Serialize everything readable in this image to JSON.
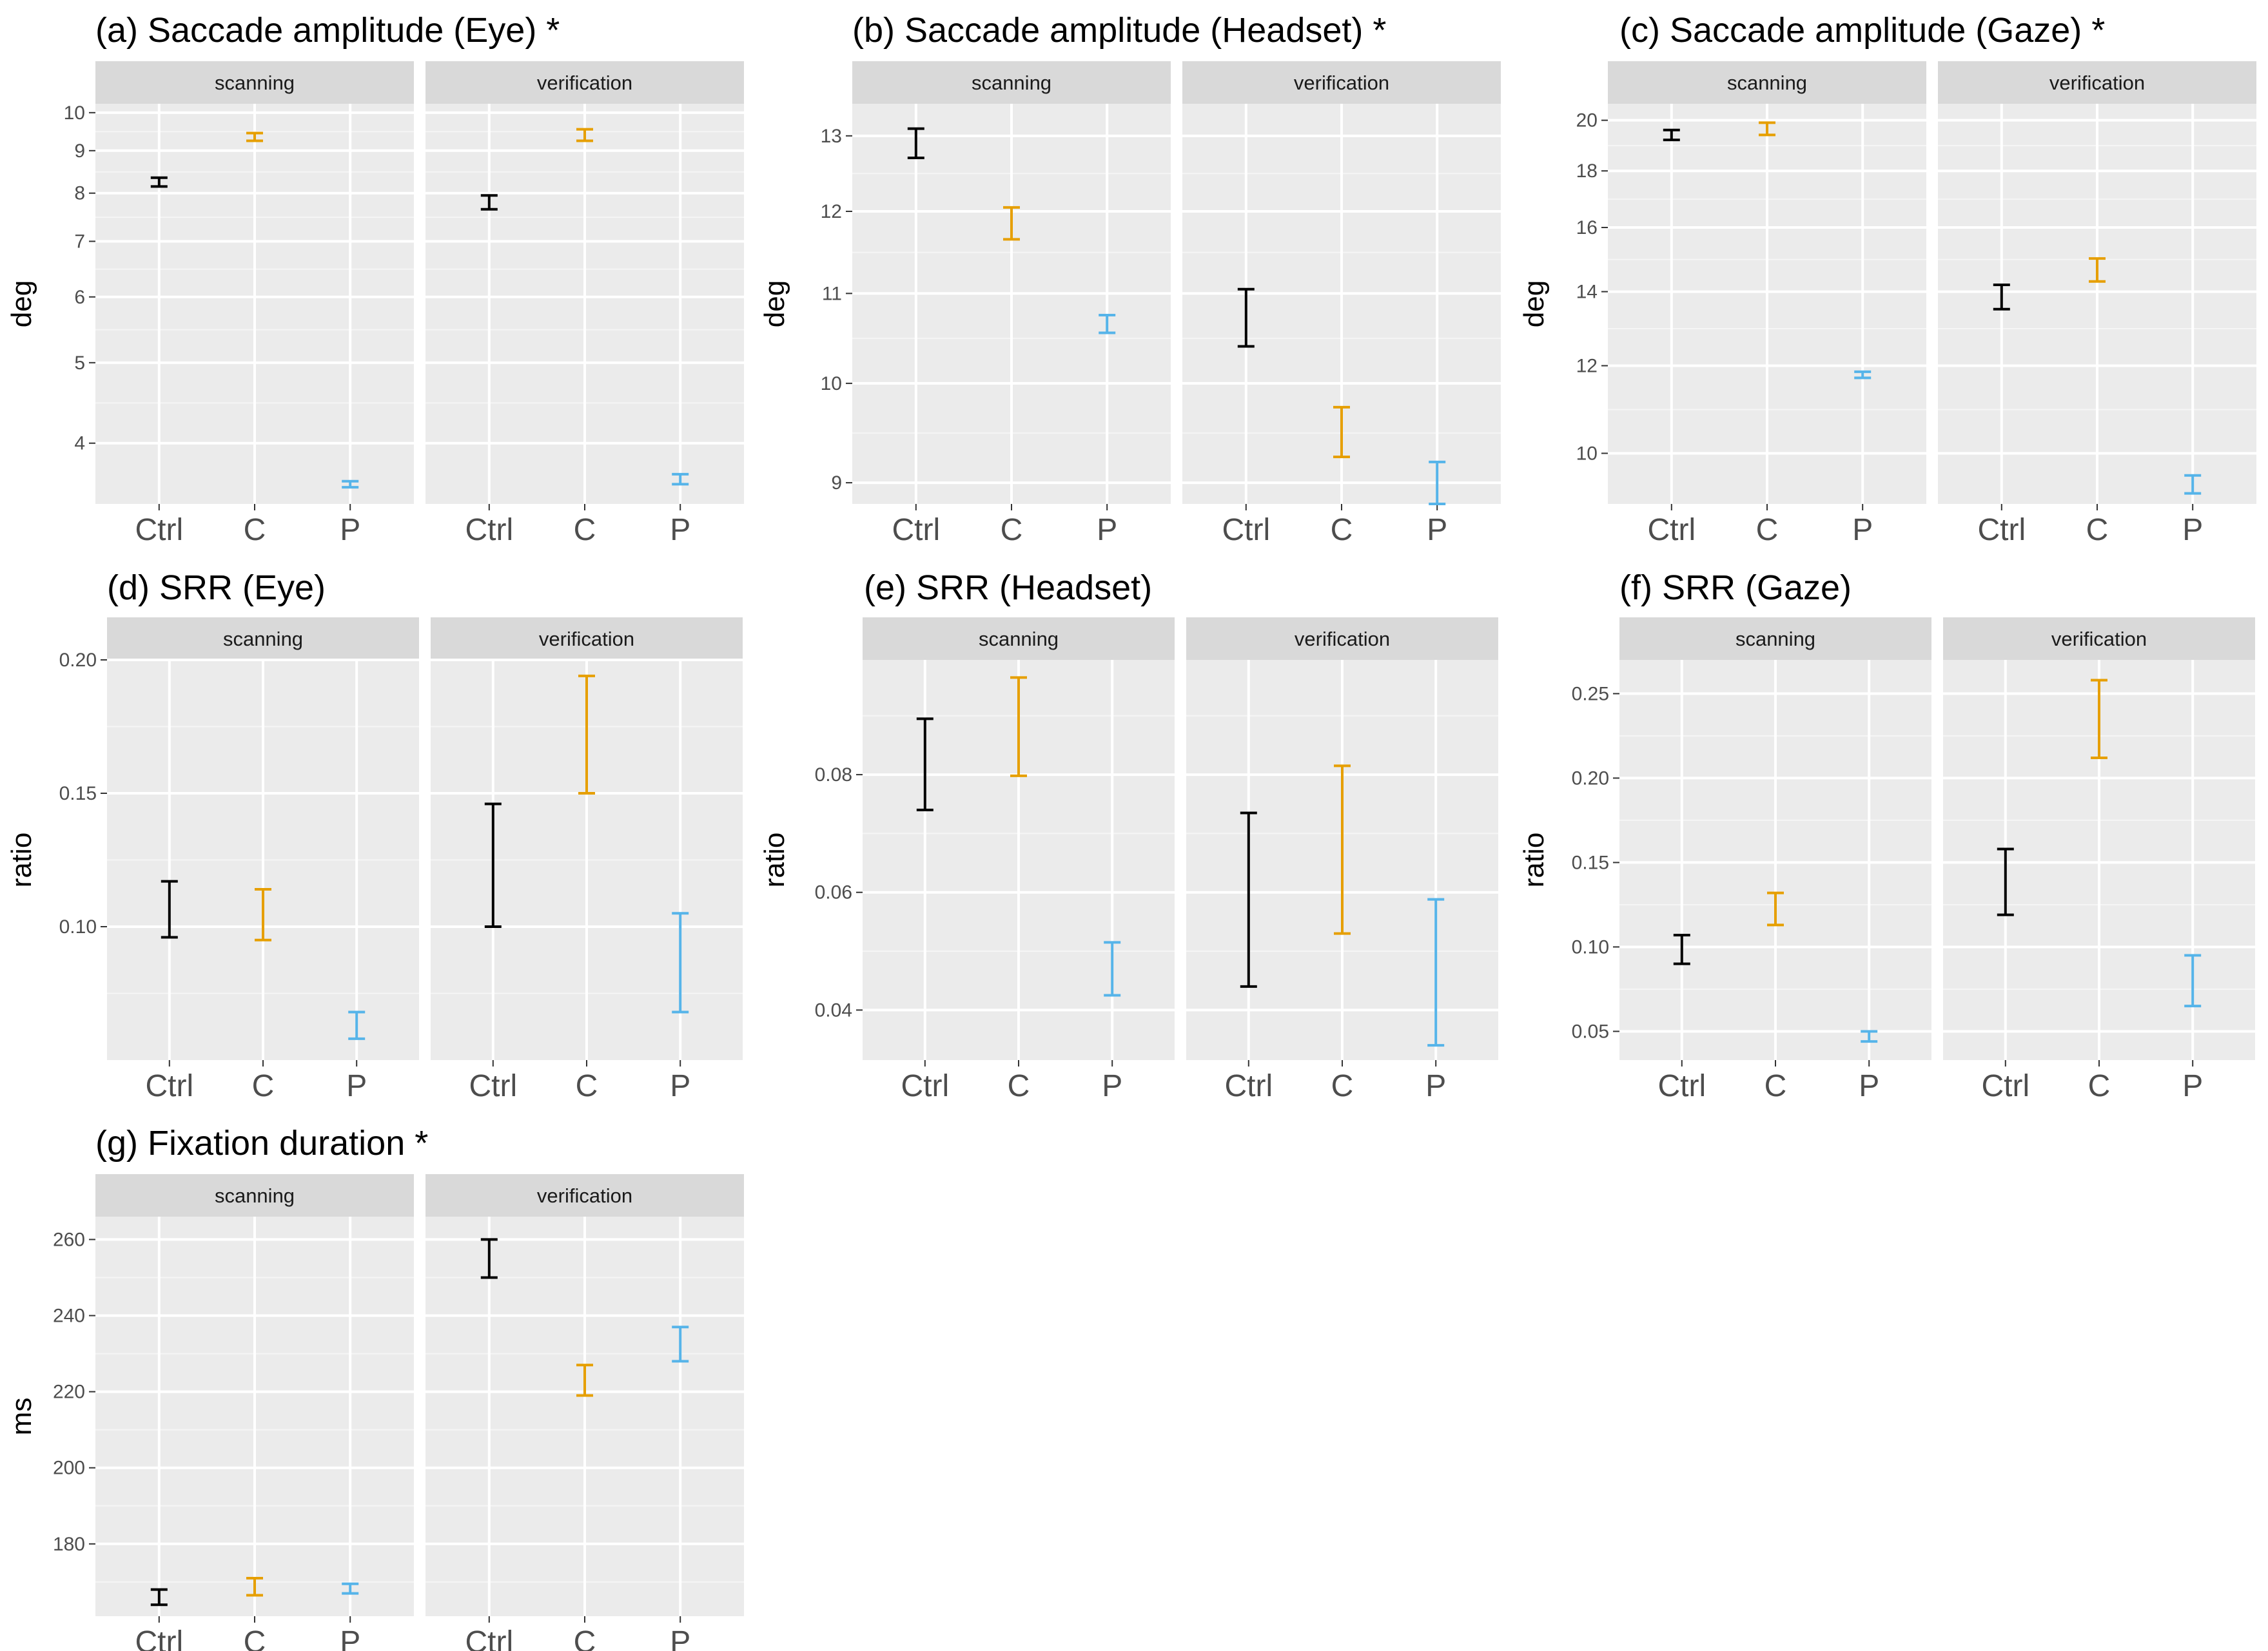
{
  "colors": {
    "Ctrl": "#000000",
    "C": "#E69F00",
    "P": "#56B4E9"
  },
  "chart_data": [
    {
      "type": "errorbar",
      "title": "(a) Saccade amplitude (Eye) *",
      "ylabel": "deg",
      "yscale": "log",
      "ylim": [
        3.38,
        10.25
      ],
      "yticks": [
        4,
        5,
        6,
        7,
        8,
        9,
        10
      ],
      "facets": [
        "scanning",
        "verification"
      ],
      "categories": [
        "Ctrl",
        "C",
        "P"
      ],
      "series": [
        {
          "facet": "scanning",
          "bars": [
            {
              "group": "Ctrl",
              "low": 8.15,
              "high": 8.35
            },
            {
              "group": "C",
              "low": 9.25,
              "high": 9.45
            },
            {
              "group": "P",
              "low": 3.54,
              "high": 3.6
            }
          ]
        },
        {
          "facet": "verification",
          "bars": [
            {
              "group": "Ctrl",
              "low": 7.65,
              "high": 7.95
            },
            {
              "group": "C",
              "low": 9.25,
              "high": 9.55
            },
            {
              "group": "P",
              "low": 3.57,
              "high": 3.67
            }
          ]
        }
      ]
    },
    {
      "type": "errorbar",
      "title": "(b) Saccade amplitude (Headset) *",
      "ylabel": "deg",
      "yscale": "log",
      "ylim": [
        8.8,
        13.45
      ],
      "yticks": [
        9,
        10,
        11,
        12,
        13
      ],
      "facets": [
        "scanning",
        "verification"
      ],
      "categories": [
        "Ctrl",
        "C",
        "P"
      ],
      "series": [
        {
          "facet": "scanning",
          "bars": [
            {
              "group": "Ctrl",
              "low": 12.7,
              "high": 13.1
            },
            {
              "group": "C",
              "low": 11.65,
              "high": 12.05
            },
            {
              "group": "P",
              "low": 10.55,
              "high": 10.75
            }
          ]
        },
        {
          "facet": "verification",
          "bars": [
            {
              "group": "Ctrl",
              "low": 10.4,
              "high": 11.05
            },
            {
              "group": "C",
              "low": 9.25,
              "high": 9.75
            },
            {
              "group": "P",
              "low": 8.8,
              "high": 9.2
            }
          ]
        }
      ]
    },
    {
      "type": "errorbar",
      "title": "(c) Saccade amplitude (Gaze) *",
      "ylabel": "deg",
      "yscale": "log",
      "ylim": [
        9.0,
        20.7
      ],
      "yticks": [
        10,
        12,
        14,
        16,
        18,
        20
      ],
      "facets": [
        "scanning",
        "verification"
      ],
      "categories": [
        "Ctrl",
        "C",
        "P"
      ],
      "series": [
        {
          "facet": "scanning",
          "bars": [
            {
              "group": "Ctrl",
              "low": 19.2,
              "high": 19.6
            },
            {
              "group": "C",
              "low": 19.4,
              "high": 19.9
            },
            {
              "group": "P",
              "low": 11.7,
              "high": 11.85
            }
          ]
        },
        {
          "facet": "verification",
          "bars": [
            {
              "group": "Ctrl",
              "low": 13.5,
              "high": 14.2
            },
            {
              "group": "C",
              "low": 14.3,
              "high": 15.0
            },
            {
              "group": "P",
              "low": 9.2,
              "high": 9.55
            }
          ]
        }
      ]
    },
    {
      "type": "errorbar",
      "title": "(d) SRR (Eye)",
      "ylabel": "ratio",
      "yscale": "linear",
      "ylim": [
        0.05,
        0.2
      ],
      "yticks": [
        0.1,
        0.15,
        0.2
      ],
      "ytick_labels": [
        "0.10",
        "0.15",
        "0.20"
      ],
      "facets": [
        "scanning",
        "verification"
      ],
      "categories": [
        "Ctrl",
        "C",
        "P"
      ],
      "series": [
        {
          "facet": "scanning",
          "bars": [
            {
              "group": "Ctrl",
              "low": 0.096,
              "high": 0.117
            },
            {
              "group": "C",
              "low": 0.095,
              "high": 0.114
            },
            {
              "group": "P",
              "low": 0.058,
              "high": 0.068
            }
          ]
        },
        {
          "facet": "verification",
          "bars": [
            {
              "group": "Ctrl",
              "low": 0.1,
              "high": 0.146
            },
            {
              "group": "C",
              "low": 0.15,
              "high": 0.194
            },
            {
              "group": "P",
              "low": 0.068,
              "high": 0.105
            }
          ]
        }
      ]
    },
    {
      "type": "errorbar",
      "title": "(e) SRR (Headset)",
      "ylabel": "ratio",
      "yscale": "linear",
      "ylim": [
        0.0315,
        0.0995
      ],
      "yticks": [
        0.04,
        0.06,
        0.08
      ],
      "ytick_labels": [
        "0.04",
        "0.06",
        "0.08"
      ],
      "facets": [
        "scanning",
        "verification"
      ],
      "categories": [
        "Ctrl",
        "C",
        "P"
      ],
      "series": [
        {
          "facet": "scanning",
          "bars": [
            {
              "group": "Ctrl",
              "low": 0.074,
              "high": 0.0895
            },
            {
              "group": "C",
              "low": 0.0798,
              "high": 0.0965
            },
            {
              "group": "P",
              "low": 0.0425,
              "high": 0.0515
            }
          ]
        },
        {
          "facet": "verification",
          "bars": [
            {
              "group": "Ctrl",
              "low": 0.044,
              "high": 0.0735
            },
            {
              "group": "C",
              "low": 0.053,
              "high": 0.0815
            },
            {
              "group": "P",
              "low": 0.034,
              "high": 0.0588
            }
          ]
        }
      ]
    },
    {
      "type": "errorbar",
      "title": "(f) SRR (Gaze)",
      "ylabel": "ratio",
      "yscale": "linear",
      "ylim": [
        0.033,
        0.27
      ],
      "yticks": [
        0.05,
        0.1,
        0.15,
        0.2,
        0.25
      ],
      "ytick_labels": [
        "0.05",
        "0.10",
        "0.15",
        "0.20",
        "0.25"
      ],
      "facets": [
        "scanning",
        "verification"
      ],
      "categories": [
        "Ctrl",
        "C",
        "P"
      ],
      "series": [
        {
          "facet": "scanning",
          "bars": [
            {
              "group": "Ctrl",
              "low": 0.09,
              "high": 0.107
            },
            {
              "group": "C",
              "low": 0.113,
              "high": 0.132
            },
            {
              "group": "P",
              "low": 0.044,
              "high": 0.05
            }
          ]
        },
        {
          "facet": "verification",
          "bars": [
            {
              "group": "Ctrl",
              "low": 0.119,
              "high": 0.158
            },
            {
              "group": "C",
              "low": 0.212,
              "high": 0.258
            },
            {
              "group": "P",
              "low": 0.065,
              "high": 0.095
            }
          ]
        }
      ]
    },
    {
      "type": "errorbar",
      "title": "(g) Fixation duration *",
      "ylabel": "ms",
      "yscale": "linear",
      "ylim": [
        161,
        266
      ],
      "yticks": [
        180,
        200,
        220,
        240,
        260
      ],
      "facets": [
        "scanning",
        "verification"
      ],
      "categories": [
        "Ctrl",
        "C",
        "P"
      ],
      "series": [
        {
          "facet": "scanning",
          "bars": [
            {
              "group": "Ctrl",
              "low": 164,
              "high": 168
            },
            {
              "group": "C",
              "low": 166.5,
              "high": 171
            },
            {
              "group": "P",
              "low": 167,
              "high": 169.5
            }
          ]
        },
        {
          "facet": "verification",
          "bars": [
            {
              "group": "Ctrl",
              "low": 250,
              "high": 260
            },
            {
              "group": "C",
              "low": 219,
              "high": 227
            },
            {
              "group": "P",
              "low": 228,
              "high": 237
            }
          ]
        }
      ]
    }
  ]
}
